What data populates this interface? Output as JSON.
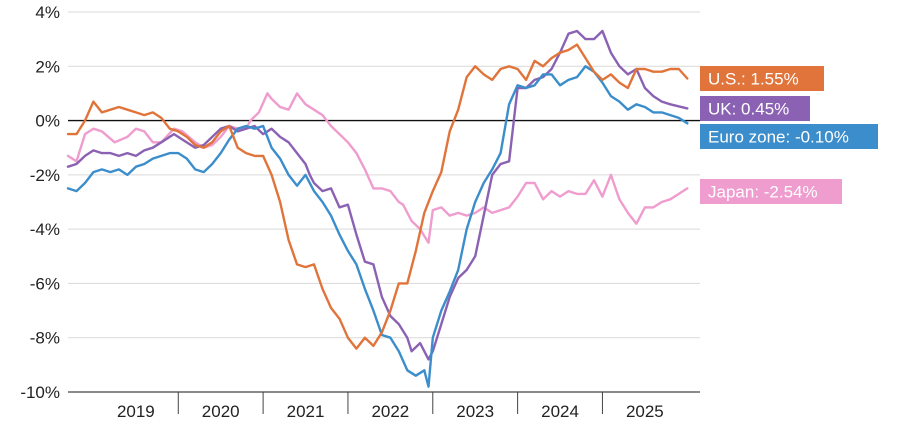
{
  "chart_data": {
    "type": "line",
    "title": "",
    "xlabel": "",
    "ylabel": "",
    "ylim": [
      -10,
      4
    ],
    "yticks": [
      4,
      2,
      0,
      -2,
      -4,
      -6,
      -8,
      -10
    ],
    "ytick_labels": [
      "4%",
      "2%",
      "0%",
      "-2%",
      "-4%",
      "-6%",
      "-8%",
      "-10%"
    ],
    "xlim": [
      2018.2,
      2025.65
    ],
    "xtick_labels": [
      {
        "label": "2019",
        "x": 2019.0
      },
      {
        "label": "2020",
        "x": 2020.0
      },
      {
        "label": "2021",
        "x": 2021.0
      },
      {
        "label": "2022",
        "x": 2022.0
      },
      {
        "label": "2023",
        "x": 2023.0
      },
      {
        "label": "2024",
        "x": 2024.0
      },
      {
        "label": "2025",
        "x": 2025.0
      }
    ],
    "x_separators": [
      2019.5,
      2020.5,
      2021.5,
      2022.5,
      2023.5,
      2024.5
    ],
    "zero_line": true,
    "legend": "end-of-line labels",
    "series": [
      {
        "name": "Japan",
        "label": "Japan: -2.54%",
        "color": "#ef9cce",
        "x": [
          2018.2,
          2018.3,
          2018.4,
          2018.5,
          2018.6,
          2018.75,
          2018.9,
          2019.0,
          2019.1,
          2019.2,
          2019.3,
          2019.45,
          2019.55,
          2019.7,
          2019.8,
          2019.9,
          2020.0,
          2020.1,
          2020.2,
          2020.3,
          2020.35,
          2020.45,
          2020.55,
          2020.6,
          2020.7,
          2020.8,
          2020.9,
          2021.0,
          2021.1,
          2021.2,
          2021.3,
          2021.4,
          2021.5,
          2021.6,
          2021.7,
          2021.8,
          2021.9,
          2022.0,
          2022.1,
          2022.15,
          2022.25,
          2022.35,
          2022.45,
          2022.5,
          2022.6,
          2022.7,
          2022.8,
          2022.9,
          2023.0,
          2023.1,
          2023.2,
          2023.3,
          2023.4,
          2023.5,
          2023.6,
          2023.7,
          2023.8,
          2023.9,
          2024.0,
          2024.1,
          2024.2,
          2024.3,
          2024.4,
          2024.5,
          2024.6,
          2024.7,
          2024.8,
          2024.9,
          2025.0,
          2025.1,
          2025.2,
          2025.3,
          2025.4,
          2025.5
        ],
        "y": [
          -1.3,
          -1.5,
          -0.5,
          -0.3,
          -0.4,
          -0.8,
          -0.6,
          -0.3,
          -0.4,
          -0.8,
          -0.8,
          -0.3,
          -0.4,
          -0.8,
          -1.0,
          -0.9,
          -0.6,
          -0.2,
          -0.3,
          -0.3,
          0.0,
          0.3,
          1.0,
          0.8,
          0.5,
          0.4,
          1.0,
          0.6,
          0.4,
          0.2,
          -0.2,
          -0.5,
          -0.8,
          -1.2,
          -1.8,
          -2.5,
          -2.5,
          -2.6,
          -3.0,
          -3.1,
          -3.7,
          -4.0,
          -4.5,
          -3.3,
          -3.2,
          -3.5,
          -3.4,
          -3.5,
          -3.4,
          -3.2,
          -3.4,
          -3.3,
          -3.2,
          -2.8,
          -2.3,
          -2.3,
          -2.9,
          -2.6,
          -2.8,
          -2.6,
          -2.7,
          -2.7,
          -2.2,
          -2.8,
          -2.0,
          -2.9,
          -3.4,
          -3.8,
          -3.2,
          -3.2,
          -3.0,
          -2.9,
          -2.7,
          -2.5
        ]
      },
      {
        "name": "UK",
        "label": "UK: 0.45%",
        "color": "#8b62b3",
        "x": [
          2018.2,
          2018.3,
          2018.4,
          2018.5,
          2018.6,
          2018.7,
          2018.8,
          2018.9,
          2019.0,
          2019.1,
          2019.2,
          2019.3,
          2019.45,
          2019.55,
          2019.7,
          2019.8,
          2019.9,
          2020.0,
          2020.1,
          2020.2,
          2020.3,
          2020.4,
          2020.5,
          2020.6,
          2020.7,
          2020.8,
          2020.9,
          2021.0,
          2021.05,
          2021.1,
          2021.2,
          2021.3,
          2021.4,
          2021.5,
          2021.6,
          2021.7,
          2021.8,
          2021.9,
          2022.0,
          2022.1,
          2022.2,
          2022.25,
          2022.35,
          2022.45,
          2022.5,
          2022.6,
          2022.7,
          2022.8,
          2022.9,
          2023.0,
          2023.1,
          2023.2,
          2023.3,
          2023.4,
          2023.5,
          2023.6,
          2023.7,
          2023.8,
          2023.9,
          2024.0,
          2024.1,
          2024.2,
          2024.3,
          2024.4,
          2024.5,
          2024.6,
          2024.7,
          2024.8,
          2024.9,
          2025.0,
          2025.1,
          2025.2,
          2025.3,
          2025.5
        ],
        "y": [
          -1.7,
          -1.6,
          -1.3,
          -1.1,
          -1.2,
          -1.2,
          -1.3,
          -1.2,
          -1.3,
          -1.1,
          -1.0,
          -0.8,
          -0.5,
          -0.7,
          -1.0,
          -0.9,
          -0.6,
          -0.3,
          -0.2,
          -0.4,
          -0.3,
          -0.2,
          -0.5,
          -0.3,
          -0.6,
          -0.8,
          -1.2,
          -1.6,
          -2.0,
          -2.3,
          -2.6,
          -2.5,
          -3.2,
          -3.1,
          -4.2,
          -5.2,
          -5.3,
          -6.5,
          -7.2,
          -7.5,
          -8.0,
          -8.5,
          -8.2,
          -8.8,
          -8.5,
          -7.5,
          -6.5,
          -5.8,
          -5.5,
          -5.0,
          -3.5,
          -2.0,
          -1.6,
          -1.5,
          1.2,
          1.2,
          1.5,
          1.6,
          1.9,
          2.5,
          3.2,
          3.3,
          3.0,
          3.0,
          3.3,
          2.5,
          2.0,
          1.7,
          1.9,
          1.2,
          0.9,
          0.7,
          0.6,
          0.45
        ]
      },
      {
        "name": "Euro zone",
        "label": "Euro zone: -0.10%",
        "color": "#3b8ecb",
        "x": [
          2018.2,
          2018.3,
          2018.4,
          2018.5,
          2018.6,
          2018.7,
          2018.8,
          2018.9,
          2019.0,
          2019.1,
          2019.2,
          2019.3,
          2019.4,
          2019.5,
          2019.6,
          2019.7,
          2019.8,
          2019.9,
          2020.0,
          2020.1,
          2020.2,
          2020.3,
          2020.4,
          2020.5,
          2020.6,
          2020.7,
          2020.8,
          2020.9,
          2021.0,
          2021.1,
          2021.2,
          2021.3,
          2021.4,
          2021.5,
          2021.6,
          2021.7,
          2021.8,
          2021.9,
          2022.0,
          2022.1,
          2022.2,
          2022.3,
          2022.4,
          2022.45,
          2022.5,
          2022.6,
          2022.7,
          2022.8,
          2022.9,
          2023.0,
          2023.1,
          2023.2,
          2023.3,
          2023.4,
          2023.5,
          2023.6,
          2023.7,
          2023.8,
          2023.9,
          2024.0,
          2024.1,
          2024.2,
          2024.3,
          2024.4,
          2024.5,
          2024.6,
          2024.7,
          2024.8,
          2024.9,
          2025.0,
          2025.1,
          2025.2,
          2025.3,
          2025.4,
          2025.5
        ],
        "y": [
          -2.5,
          -2.6,
          -2.3,
          -1.9,
          -1.8,
          -1.9,
          -1.8,
          -2.0,
          -1.7,
          -1.6,
          -1.4,
          -1.3,
          -1.2,
          -1.2,
          -1.4,
          -1.8,
          -1.9,
          -1.6,
          -1.2,
          -0.7,
          -0.3,
          -0.2,
          -0.3,
          -0.2,
          -1.0,
          -1.4,
          -2.0,
          -2.4,
          -2.0,
          -2.6,
          -3.0,
          -3.5,
          -4.2,
          -4.8,
          -5.3,
          -6.2,
          -7.0,
          -7.9,
          -8.0,
          -8.5,
          -9.2,
          -9.4,
          -9.2,
          -9.8,
          -8.0,
          -7.0,
          -6.3,
          -5.5,
          -4.0,
          -3.0,
          -2.3,
          -1.8,
          -1.2,
          0.6,
          1.3,
          1.2,
          1.3,
          1.7,
          1.7,
          1.3,
          1.5,
          1.6,
          2.0,
          1.8,
          1.4,
          0.9,
          0.7,
          0.4,
          0.6,
          0.5,
          0.3,
          0.3,
          0.2,
          0.1,
          -0.1
        ]
      },
      {
        "name": "U.S.",
        "label": "U.S.: 1.55%",
        "color": "#e0743a",
        "x": [
          2018.2,
          2018.3,
          2018.4,
          2018.5,
          2018.6,
          2018.7,
          2018.8,
          2018.9,
          2019.0,
          2019.1,
          2019.2,
          2019.3,
          2019.4,
          2019.5,
          2019.6,
          2019.7,
          2019.8,
          2019.9,
          2020.0,
          2020.1,
          2020.2,
          2020.3,
          2020.4,
          2020.5,
          2020.6,
          2020.7,
          2020.8,
          2020.9,
          2021.0,
          2021.1,
          2021.2,
          2021.3,
          2021.4,
          2021.5,
          2021.6,
          2021.7,
          2021.8,
          2021.9,
          2022.0,
          2022.1,
          2022.2,
          2022.3,
          2022.4,
          2022.5,
          2022.6,
          2022.7,
          2022.8,
          2022.9,
          2023.0,
          2023.1,
          2023.2,
          2023.3,
          2023.4,
          2023.5,
          2023.6,
          2023.7,
          2023.8,
          2023.9,
          2024.0,
          2024.1,
          2024.2,
          2024.3,
          2024.4,
          2024.5,
          2024.6,
          2024.7,
          2024.8,
          2024.9,
          2025.0,
          2025.1,
          2025.2,
          2025.3,
          2025.4,
          2025.5
        ],
        "y": [
          -0.5,
          -0.5,
          0.0,
          0.7,
          0.3,
          0.4,
          0.5,
          0.4,
          0.3,
          0.2,
          0.3,
          0.1,
          -0.3,
          -0.4,
          -0.6,
          -0.9,
          -1.0,
          -0.8,
          -0.4,
          -0.2,
          -1.0,
          -1.2,
          -1.3,
          -1.3,
          -2.0,
          -3.0,
          -4.4,
          -5.3,
          -5.4,
          -5.3,
          -6.2,
          -6.9,
          -7.3,
          -8.0,
          -8.4,
          -8.0,
          -8.3,
          -7.8,
          -7.0,
          -6.0,
          -6.0,
          -4.8,
          -3.4,
          -2.6,
          -1.9,
          -0.4,
          0.4,
          1.6,
          2.0,
          1.7,
          1.5,
          1.9,
          2.0,
          1.9,
          1.5,
          2.2,
          2.0,
          2.3,
          2.5,
          2.6,
          2.8,
          2.3,
          1.8,
          1.5,
          1.7,
          1.4,
          1.2,
          1.9,
          1.9,
          1.8,
          1.8,
          1.9,
          1.9,
          1.55
        ]
      }
    ]
  },
  "labels": {
    "us": "U.S.: 1.55%",
    "uk": "UK: 0.45%",
    "euro": "Euro zone: -0.10%",
    "japan": "Japan: -2.54%"
  }
}
